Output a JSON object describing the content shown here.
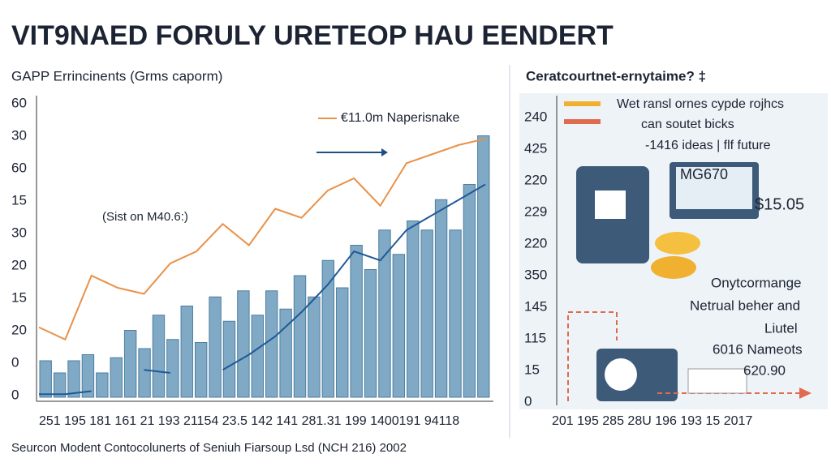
{
  "title": "VIT9NAED FORULY URETEOP HAU EENDERT",
  "footer": "Seurcon Modent Contocolunerts of Seniuh Fiarsoup Lsd (NCH 216) 2002",
  "chart_data": {
    "type": "bar",
    "subtitle": "GAPP Errincinents (Grms caporm)",
    "y_axis_labels": [
      60,
      30,
      60,
      15,
      30,
      20,
      15,
      20,
      0,
      0
    ],
    "x_axis_text": "251 195 181 161 21 193 21154 23.5 142 141 281.31 199 1400191 94118",
    "annotations": [
      "€11.0m Naperisnake",
      "(Sist on M40.6:)"
    ],
    "ylim": [
      0,
      100
    ],
    "color": "#7fa9c4",
    "values": [
      12,
      8,
      12,
      14,
      8,
      13,
      22,
      16,
      27,
      19,
      30,
      18,
      33,
      25,
      35,
      27,
      35,
      29,
      40,
      33,
      45,
      36,
      50,
      42,
      55,
      47,
      58,
      55,
      65,
      55,
      70,
      86
    ],
    "lines": [
      {
        "color": "#e8924a",
        "values": [
          23,
          19,
          40,
          36,
          34,
          44,
          48,
          57,
          50,
          62,
          59,
          68,
          72,
          63,
          77,
          80,
          83,
          85
        ]
      },
      {
        "color": "#1f5a96",
        "values": [
          1,
          1,
          2,
          null,
          9,
          8,
          null,
          9,
          14,
          20,
          28,
          37,
          48,
          45,
          55,
          60,
          65,
          70
        ]
      }
    ]
  },
  "right_panel": {
    "title": "Ceratcourtnet-ernytaime? ‡",
    "y_axis_labels": [
      240,
      425,
      220,
      229,
      220,
      350,
      145,
      115,
      15,
      0
    ],
    "x_axis_text": "201 195 285 28U 196 193 15 2017",
    "texts": [
      "Wet ransl ornes cypde rojhcs",
      "can soutet bicks",
      "-1416 ideas | flf future",
      "MG670",
      "$15.05",
      "Onytcormange",
      "Netrual beher and",
      "Liutel",
      "6016 Nameots",
      "620.90"
    ]
  }
}
